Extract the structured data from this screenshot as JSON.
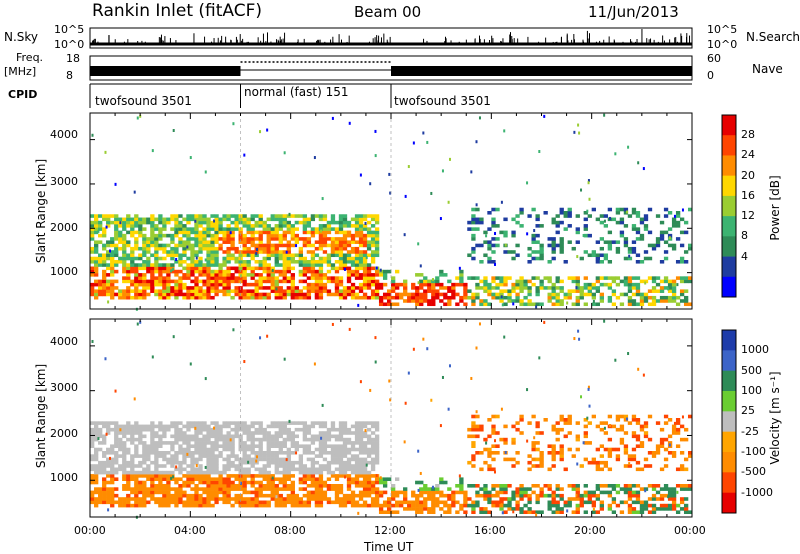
{
  "header": {
    "station": "Rankin Inlet (fitACF)",
    "beam": "Beam 00",
    "date": "11/Jun/2013"
  },
  "strip": {
    "nsky_label": "N.Sky",
    "nsky_ticks": [
      "10^5",
      "10^0"
    ],
    "nsearch_label": "N.Search",
    "nsearch_ticks": [
      "10^5",
      "10^0"
    ],
    "freq_label": "Freq.",
    "freq_unit": "[MHz]",
    "freq_ticks": [
      "18",
      "8"
    ],
    "nave_label": "Nave",
    "nave_ticks": [
      "60",
      "0"
    ],
    "cpid_label": "CPID",
    "cpid_segments": [
      {
        "name": "twofsound 3501",
        "start_h": 0,
        "end_h": 6
      },
      {
        "name": "normal (fast) 151",
        "start_h": 6,
        "end_h": 12
      },
      {
        "name": "twofsound 3501",
        "start_h": 12,
        "end_h": 24
      }
    ]
  },
  "colorbars": {
    "power": {
      "label": "Power [dB]",
      "ticks": [
        "28",
        "24",
        "20",
        "16",
        "12",
        "8",
        "4"
      ],
      "colors": [
        "#e60000",
        "#ff4500",
        "#ff8c00",
        "#ffd700",
        "#9acd32",
        "#3cb371",
        "#2e8b57",
        "#1e3ca0",
        "#0000ff"
      ]
    },
    "velocity": {
      "label": "Velocity [m s⁻¹]",
      "ticks": [
        "1000",
        "500",
        "100",
        "25",
        "-25",
        "-100",
        "-500",
        "-1000"
      ],
      "colors": [
        "#1e3caa",
        "#3c64c8",
        "#2e8b57",
        "#6acd32",
        "#bebebe",
        "#ffa500",
        "#ff8c00",
        "#ff4500",
        "#e60000"
      ]
    }
  },
  "chart_data": [
    {
      "type": "heatmap",
      "ylabel": "Slant Range [km]",
      "x_ticks": [
        "00:00",
        "04:00",
        "08:00",
        "12:00",
        "16:00",
        "20:00",
        "00:00"
      ],
      "y_ticks": [
        "4000",
        "3000",
        "2000",
        "1000"
      ],
      "xlim": [
        0,
        24
      ],
      "ylim": [
        180,
        4600
      ],
      "colorbar": "Power [dB]",
      "clim": [
        0,
        30
      ]
    },
    {
      "type": "heatmap",
      "xlabel": "Time UT",
      "ylabel": "Slant Range [km]",
      "x_ticks": [
        "00:00",
        "04:00",
        "08:00",
        "12:00",
        "16:00",
        "20:00",
        "00:00"
      ],
      "y_ticks": [
        "4000",
        "3000",
        "2000",
        "1000"
      ],
      "xlim": [
        0,
        24
      ],
      "ylim": [
        180,
        4600
      ],
      "colorbar": "Velocity [m s⁻¹]",
      "clim": [
        -1000,
        1000
      ]
    }
  ]
}
